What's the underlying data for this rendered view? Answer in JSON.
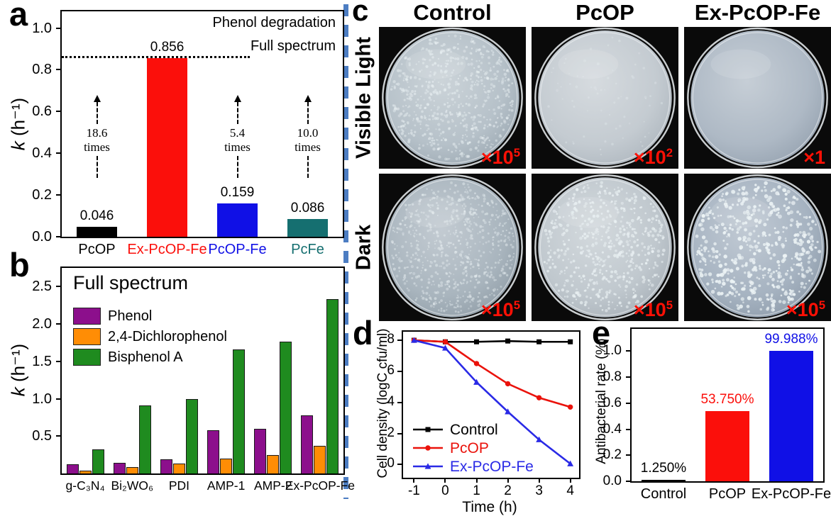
{
  "figure": {
    "divider_color": "#4c7dc2",
    "background": "#ffffff"
  },
  "panel_a": {
    "letter": "a"
  },
  "panel_b": {
    "letter": "b"
  },
  "panel_c": {
    "letter": "c",
    "column_headers": [
      "Control",
      "PcOP",
      "Ex-PcOP-Fe"
    ],
    "row_labels": [
      "Visible Light",
      "Dark"
    ],
    "magnification_color": "#ff1005",
    "dishes": [
      {
        "condition": "Visible Light",
        "sample": "Control",
        "magnification_base": "×10",
        "magnification_exp": "5",
        "colony_count": 620,
        "colony_opacity": 0.55,
        "colony_radius": 1.6,
        "face_color": "#b6c1c9",
        "edge_color": "#96a3ad",
        "seed": 11
      },
      {
        "condition": "Visible Light",
        "sample": "PcOP",
        "magnification_base": "×10",
        "magnification_exp": "2",
        "colony_count": 70,
        "colony_opacity": 0.33,
        "colony_radius": 1.5,
        "face_color": "#c4cbd1",
        "edge_color": "#a9b2ba",
        "seed": 22
      },
      {
        "condition": "Visible Light",
        "sample": "Ex-PcOP-Fe",
        "magnification_base": "×1",
        "magnification_exp": "",
        "colony_count": 0,
        "colony_opacity": 0.2,
        "colony_radius": 1.4,
        "face_color": "#aeb9c5",
        "edge_color": "#909dab",
        "seed": 33
      },
      {
        "condition": "Dark",
        "sample": "Control",
        "magnification_base": "×10",
        "magnification_exp": "5",
        "colony_count": 680,
        "colony_opacity": 0.5,
        "colony_radius": 1.5,
        "face_color": "#a9b5be",
        "edge_color": "#8b98a2",
        "seed": 44
      },
      {
        "condition": "Dark",
        "sample": "PcOP",
        "magnification_base": "×10",
        "magnification_exp": "5",
        "colony_count": 540,
        "colony_opacity": 0.75,
        "colony_radius": 1.7,
        "face_color": "#c0c8ce",
        "edge_color": "#a2abb3",
        "seed": 55
      },
      {
        "condition": "Dark",
        "sample": "Ex-PcOP-Fe",
        "magnification_base": "×10",
        "magnification_exp": "5",
        "colony_count": 500,
        "colony_opacity": 0.95,
        "colony_radius": 2.1,
        "face_color": "#a6b3c1",
        "edge_color": "#8896a5",
        "seed": 66
      }
    ]
  },
  "panel_d": {
    "letter": "d"
  },
  "panel_e": {
    "letter": "e"
  },
  "chart_data": [
    {
      "id": "panel_a",
      "type": "bar",
      "title": "Phenol degradation",
      "subtitle": "Full spectrum",
      "ylabel_italic": "k",
      "ylabel_rest": " (h⁻¹)",
      "categories": [
        "PcOP",
        "Ex-PcOP-Fe",
        "PcOP-Fe",
        "PcFe"
      ],
      "values": [
        0.046,
        0.856,
        0.159,
        0.086
      ],
      "value_labels": [
        "0.046",
        "0.856",
        "0.159",
        "0.086"
      ],
      "bar_colors": [
        "#000000",
        "#fb0f0b",
        "#1010e6",
        "#156f70"
      ],
      "category_colors": [
        "#000000",
        "#fb0f0b",
        "#1010e6",
        "#156f70"
      ],
      "yticks": [
        0.0,
        0.2,
        0.4,
        0.6,
        0.8,
        1.0
      ],
      "ytick_labels": [
        "0.0",
        "0.2",
        "0.4",
        "0.6",
        "0.8",
        "1.0"
      ],
      "ylim": [
        0,
        1.08
      ],
      "grid": false,
      "reference_line": 0.856,
      "annotations": [
        {
          "category": "PcOP",
          "lines": [
            "18.6",
            "times"
          ]
        },
        {
          "category": "PcOP-Fe",
          "lines": [
            "5.4",
            "times"
          ]
        },
        {
          "category": "PcFe",
          "lines": [
            "10.0",
            "times"
          ]
        }
      ]
    },
    {
      "id": "panel_b",
      "type": "bar",
      "title": "Full spectrum",
      "ylabel_italic": "k",
      "ylabel_rest": " (h⁻¹)",
      "categories": [
        "g-C₃N₄",
        "Bi₂WO₆",
        "PDI",
        "AMP-1",
        "AMP-2",
        "Ex-PcOP-Fe"
      ],
      "series": [
        {
          "name": "Phenol",
          "color": "#8c0f8c",
          "values": [
            0.12,
            0.14,
            0.19,
            0.58,
            0.6,
            0.78
          ]
        },
        {
          "name": "2,4-Dichlorophenol",
          "color": "#ff8d05",
          "values": [
            0.04,
            0.09,
            0.13,
            0.2,
            0.25,
            0.37
          ]
        },
        {
          "name": "Bisphenol A",
          "color": "#1f8b1f",
          "values": [
            0.32,
            0.91,
            1.0,
            1.66,
            1.76,
            2.33
          ]
        }
      ],
      "yticks": [
        0.5,
        1.0,
        1.5,
        2.0,
        2.5
      ],
      "ytick_labels": [
        "0.5",
        "1.0",
        "1.5",
        "2.0",
        "2.5"
      ],
      "ylim": [
        0,
        2.75
      ],
      "grid": false,
      "legend_position": "top-left"
    },
    {
      "id": "panel_d",
      "type": "line",
      "xlabel": "Time (h)",
      "ylabel": "Cell density (logC cfu/ml)",
      "x": [
        -1,
        0,
        1,
        2,
        3,
        4
      ],
      "series": [
        {
          "name": "Control",
          "color": "#000000",
          "marker": "square",
          "values": [
            8.0,
            7.9,
            7.9,
            7.95,
            7.9,
            7.9
          ]
        },
        {
          "name": "PcOP",
          "color": "#ea120b",
          "marker": "circle",
          "values": [
            8.0,
            7.9,
            6.5,
            5.2,
            4.3,
            3.7
          ]
        },
        {
          "name": "Ex-PcOP-Fe",
          "color": "#2a2ae6",
          "marker": "triangle",
          "values": [
            8.0,
            7.5,
            5.3,
            3.4,
            1.6,
            0.05
          ]
        }
      ],
      "xticks": [
        -1,
        0,
        1,
        2,
        3,
        4
      ],
      "xtick_labels": [
        "-1",
        "0",
        "1",
        "2",
        "3",
        "4"
      ],
      "yticks": [
        0,
        2,
        4,
        6,
        8
      ],
      "ytick_labels": [
        "0",
        "2",
        "4",
        "6",
        "8"
      ],
      "xlim": [
        -1.35,
        4.28
      ],
      "ylim": [
        -0.85,
        8.55
      ],
      "grid": false,
      "legend_position": "bottom-left"
    },
    {
      "id": "panel_e",
      "type": "bar",
      "ylabel": "Antibacterial rate (%)",
      "categories": [
        "Control",
        "PcOP",
        "Ex-PcOP-Fe"
      ],
      "values": [
        0.0125,
        0.5375,
        0.99988
      ],
      "value_labels": [
        "1.250%",
        "53.750%",
        "99.988%"
      ],
      "value_label_colors": [
        "#000000",
        "#fb0f0b",
        "#1010e6"
      ],
      "bar_colors": [
        "#000000",
        "#fb0f0b",
        "#1010e6"
      ],
      "category_colors": [
        "#000000",
        "#000000",
        "#000000"
      ],
      "yticks": [
        0.0,
        0.2,
        0.4,
        0.6,
        0.8,
        1.0
      ],
      "ytick_labels": [
        "0.0",
        "0.2",
        "0.4",
        "0.6",
        "0.8",
        "1.0"
      ],
      "ylim": [
        0,
        1.17
      ],
      "grid": false
    }
  ]
}
